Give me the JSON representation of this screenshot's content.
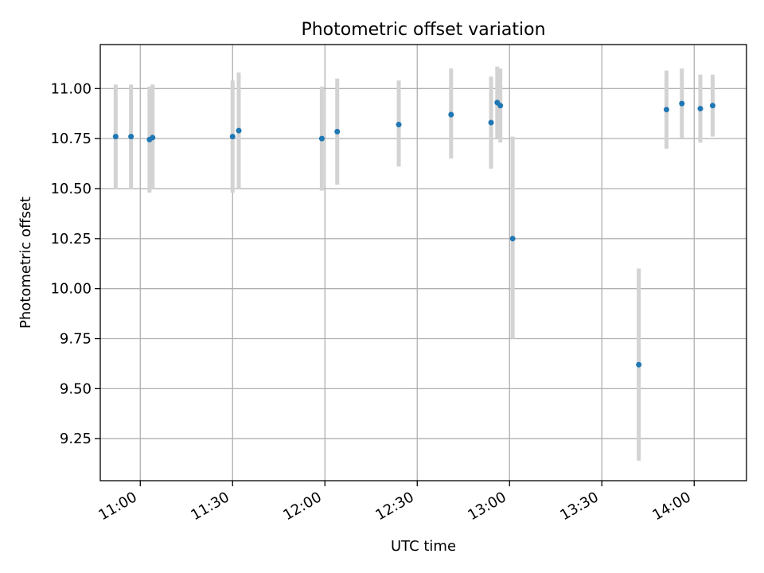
{
  "chart_data": {
    "type": "scatter",
    "title": "Photometric offset variation",
    "xlabel": "UTC time",
    "ylabel": "Photometric offset",
    "x_axis_kind": "time",
    "xlim": [
      "10:47",
      "14:17"
    ],
    "ylim": [
      9.04,
      11.22
    ],
    "x_ticks": [
      "11:00",
      "11:30",
      "12:00",
      "12:30",
      "13:00",
      "13:30",
      "14:00"
    ],
    "y_ticks": [
      "9.25",
      "9.50",
      "9.75",
      "10.00",
      "10.25",
      "10.50",
      "10.75",
      "11.00"
    ],
    "grid": true,
    "legend": "none",
    "series": [
      {
        "marker_color": "#1f77b4",
        "errorbar_color": "#d3d3d3",
        "points": [
          {
            "x": "10:52",
            "y": 10.76,
            "y_low": 10.5,
            "y_high": 11.02
          },
          {
            "x": "10:57",
            "y": 10.76,
            "y_low": 10.5,
            "y_high": 11.02
          },
          {
            "x": "11:03",
            "y": 10.745,
            "y_low": 10.48,
            "y_high": 11.01
          },
          {
            "x": "11:04",
            "y": 10.755,
            "y_low": 10.5,
            "y_high": 11.02
          },
          {
            "x": "11:30",
            "y": 10.76,
            "y_low": 10.48,
            "y_high": 11.04
          },
          {
            "x": "11:32",
            "y": 10.79,
            "y_low": 10.5,
            "y_high": 11.08
          },
          {
            "x": "11:59",
            "y": 10.75,
            "y_low": 10.49,
            "y_high": 11.01
          },
          {
            "x": "12:04",
            "y": 10.785,
            "y_low": 10.52,
            "y_high": 11.05
          },
          {
            "x": "12:24",
            "y": 10.82,
            "y_low": 10.61,
            "y_high": 11.04
          },
          {
            "x": "12:41",
            "y": 10.87,
            "y_low": 10.65,
            "y_high": 11.1
          },
          {
            "x": "12:54",
            "y": 10.83,
            "y_low": 10.6,
            "y_high": 11.06
          },
          {
            "x": "12:56",
            "y": 10.93,
            "y_low": 10.75,
            "y_high": 11.11
          },
          {
            "x": "12:57",
            "y": 10.915,
            "y_low": 10.73,
            "y_high": 11.1
          },
          {
            "x": "13:01",
            "y": 10.25,
            "y_low": 9.75,
            "y_high": 10.76
          },
          {
            "x": "13:42",
            "y": 9.62,
            "y_low": 9.14,
            "y_high": 10.1
          },
          {
            "x": "13:51",
            "y": 10.895,
            "y_low": 10.7,
            "y_high": 11.09
          },
          {
            "x": "13:56",
            "y": 10.925,
            "y_low": 10.75,
            "y_high": 11.1
          },
          {
            "x": "14:02",
            "y": 10.9,
            "y_low": 10.73,
            "y_high": 11.07
          },
          {
            "x": "14:06",
            "y": 10.915,
            "y_low": 10.76,
            "y_high": 11.07
          }
        ]
      }
    ]
  }
}
